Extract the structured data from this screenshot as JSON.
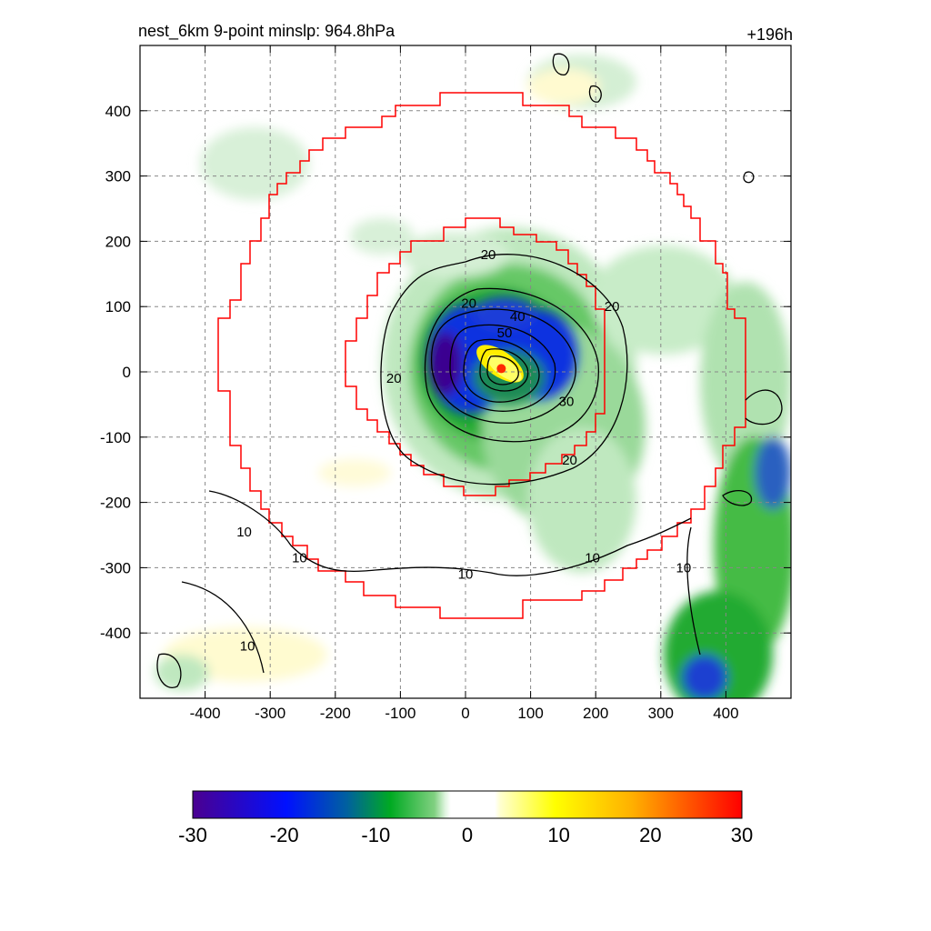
{
  "chart_data": {
    "type": "heatmap",
    "title_left": "nest_6km  9-point minslp: 964.8hPa",
    "title_right": "+196h",
    "x_ticks": [
      -400,
      -300,
      -200,
      -100,
      0,
      100,
      200,
      300,
      400
    ],
    "y_ticks": [
      400,
      300,
      200,
      100,
      0,
      -100,
      -200,
      -300,
      -400
    ],
    "xlim": [
      -500,
      500
    ],
    "ylim": [
      -500,
      500
    ],
    "grid": true,
    "colorbar": {
      "ticks": [
        -30,
        -20,
        -10,
        0,
        10,
        20,
        30
      ],
      "range": [
        -30,
        30
      ]
    },
    "contour_labels": [
      {
        "text": "20",
        "x": 35,
        "y": 180
      },
      {
        "text": "20",
        "x": 5,
        "y": 105
      },
      {
        "text": "40",
        "x": 80,
        "y": 85
      },
      {
        "text": "50",
        "x": 60,
        "y": 60
      },
      {
        "text": "20",
        "x": -110,
        "y": -10
      },
      {
        "text": "20",
        "x": 225,
        "y": 100
      },
      {
        "text": "30",
        "x": 155,
        "y": -45
      },
      {
        "text": "20",
        "x": 160,
        "y": -135
      },
      {
        "text": "10",
        "x": -340,
        "y": -245
      },
      {
        "text": "10",
        "x": -255,
        "y": -285
      },
      {
        "text": "10",
        "x": 0,
        "y": -310
      },
      {
        "text": "10",
        "x": 195,
        "y": -285
      },
      {
        "text": "10",
        "x": 335,
        "y": -300
      },
      {
        "text": "10",
        "x": -335,
        "y": -420
      }
    ],
    "center_marker": {
      "x": 55,
      "y": 5
    }
  }
}
